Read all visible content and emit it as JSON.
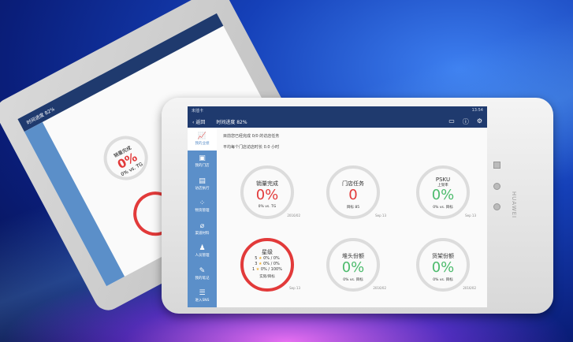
{
  "brand": "HUAWEI",
  "back_device": {
    "header": "时间进度 82%",
    "metric_title": "销量完成",
    "metric_value": "0%",
    "metric_sub": "0% vs. TG"
  },
  "status_bar": {
    "carrier": "未插卡",
    "time": "13:54"
  },
  "header": {
    "back_label": "返回",
    "progress": "时间进度 82%",
    "icons": [
      "message-icon",
      "help-icon",
      "settings-icon"
    ]
  },
  "sidebar": {
    "items": [
      {
        "label": "我的业绩",
        "icon": "chart-icon",
        "active": true
      },
      {
        "label": "我的门店",
        "icon": "store-icon"
      },
      {
        "label": "访店执行",
        "icon": "clipboard-icon"
      },
      {
        "label": "物资管理",
        "icon": "grid-icon"
      },
      {
        "label": "渠道材料",
        "icon": "paperclip-icon"
      },
      {
        "label": "人员管理",
        "icon": "people-icon"
      },
      {
        "label": "我的笔记",
        "icon": "note-icon"
      },
      {
        "label": "进入SNS",
        "icon": "list-icon"
      }
    ]
  },
  "summary": {
    "line1": "目前您已经完成 0/0 的访店任务",
    "line2": "平均每个门店访店时长 0.0 小时"
  },
  "metrics": [
    {
      "title": "销量完成",
      "value": "0%",
      "sub": "0% vs. TG",
      "date": "2016/02",
      "color": "#e23a3a"
    },
    {
      "title": "门店任务",
      "value": "0",
      "sub": "目标 85",
      "date": "Sep 13",
      "color": "#e23a3a"
    },
    {
      "title": "PSKU",
      "subtitle": "上架率",
      "value": "0%",
      "sub": "0% vs. 目标",
      "date": "Sep 13",
      "color": "#4cbb6c"
    },
    {
      "title": "星级",
      "stars": [
        {
          "n": "5",
          "text": "0% / 0%"
        },
        {
          "n": "3",
          "text": "0% / 0%"
        },
        {
          "n": "1",
          "text": "0% / 100%"
        }
      ],
      "sub": "实际/目标",
      "date": "Sep 13"
    },
    {
      "title": "堆头份额",
      "value": "0%",
      "sub": "0% vs. 目标",
      "date": "2016/02",
      "color": "#4cbb6c"
    },
    {
      "title": "货架份额",
      "value": "0%",
      "sub": "0% vs. 目标",
      "date": "2016/02",
      "color": "#4cbb6c"
    }
  ]
}
